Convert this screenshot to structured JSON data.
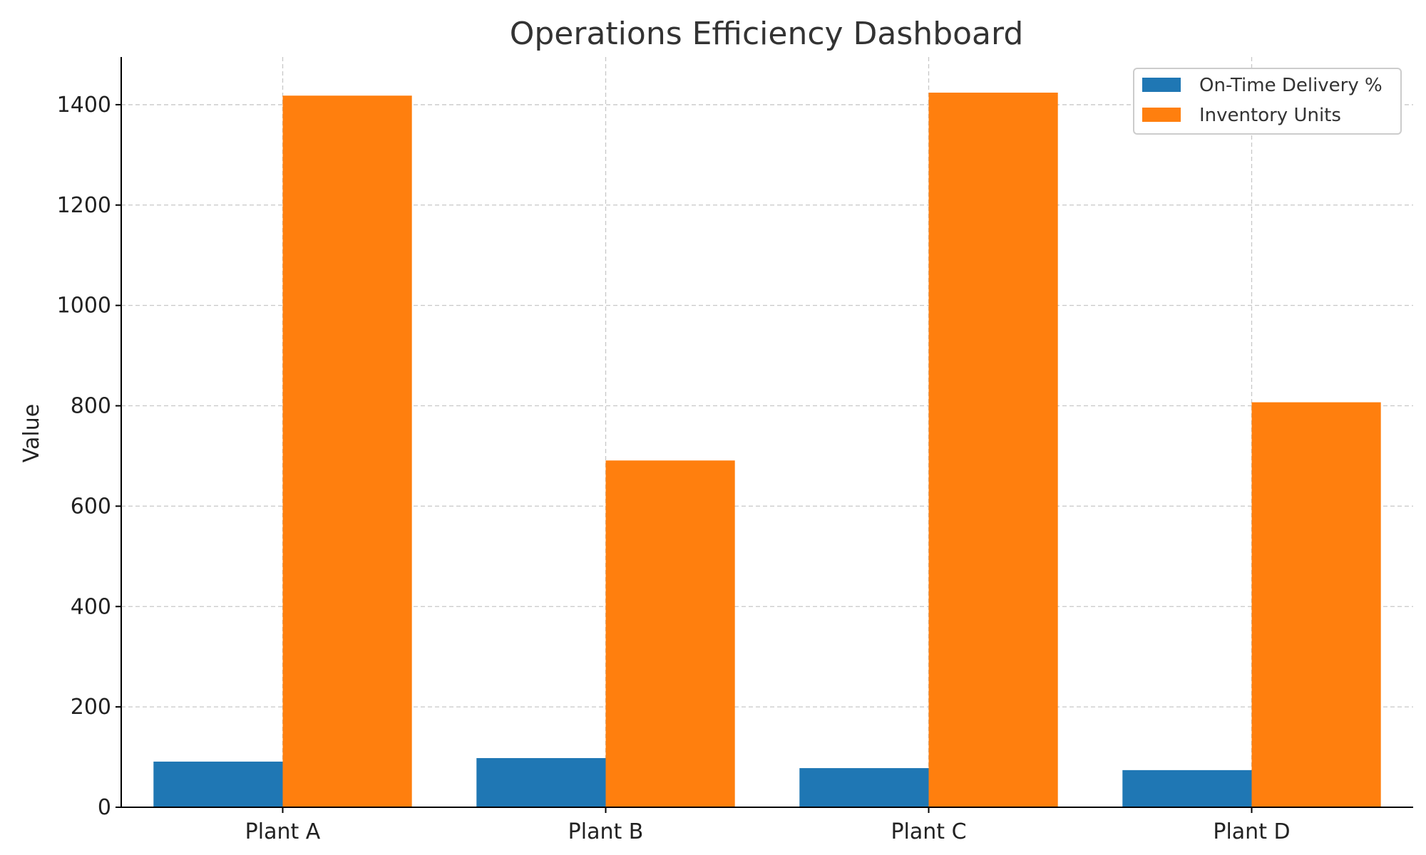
{
  "chart_data": {
    "type": "bar",
    "title": "Operations Efficiency Dashboard",
    "xlabel": "",
    "ylabel": "Value",
    "categories": [
      "Plant A",
      "Plant B",
      "Plant C",
      "Plant D"
    ],
    "series": [
      {
        "name": "On-Time Delivery %",
        "color": "#1f77b4",
        "values": [
          91,
          98,
          78,
          74
        ]
      },
      {
        "name": "Inventory Units",
        "color": "#ff7f0e",
        "values": [
          1418,
          691,
          1424,
          807
        ]
      }
    ],
    "ylim": [
      0,
      1495
    ],
    "yticks": [
      0,
      200,
      400,
      600,
      800,
      1000,
      1200,
      1400
    ],
    "grid": true,
    "legend_position": "top-right"
  }
}
